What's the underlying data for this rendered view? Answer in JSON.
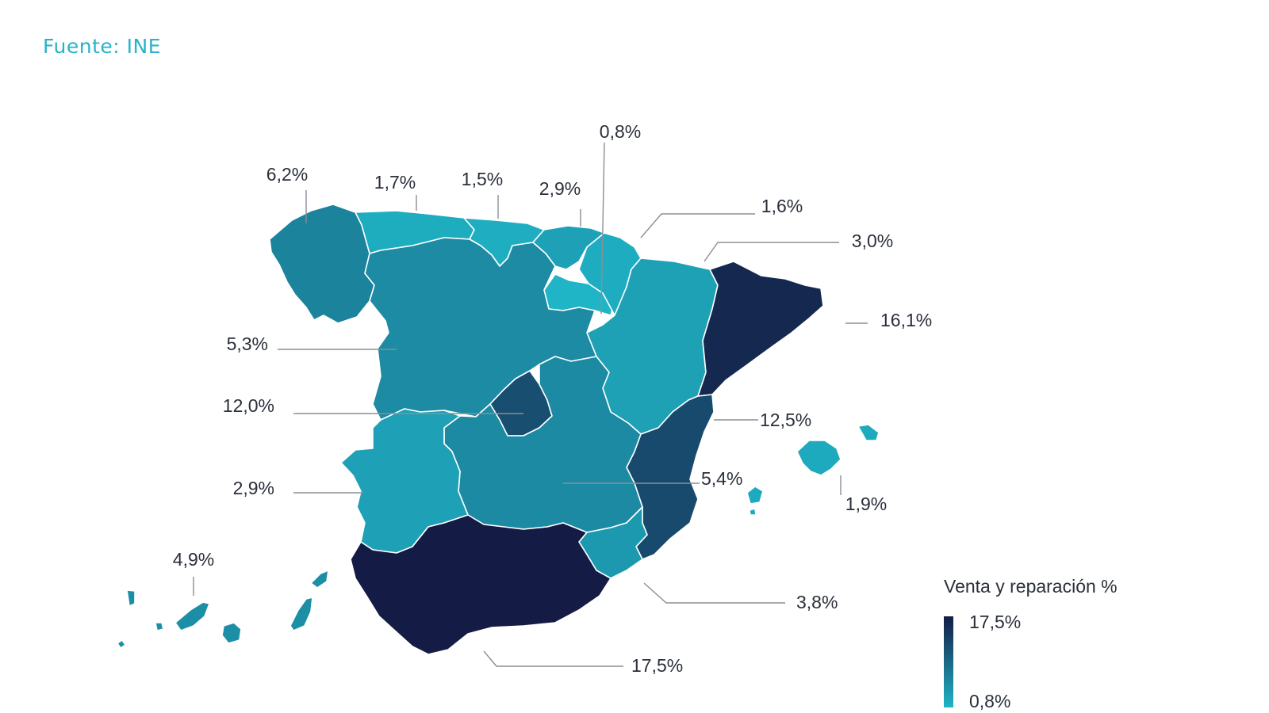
{
  "source": "Fuente: INE",
  "colors": {
    "source_text": "#29b3c8",
    "low": "#1fb4c6",
    "high": "#141c45"
  },
  "legend": {
    "title": "Venta y reparación %",
    "max_label": "17,5%",
    "min_label": "0,8%",
    "min_value": 0.8,
    "max_value": 17.5
  },
  "regions": [
    {
      "id": "galicia",
      "name": "Galicia",
      "value": 6.2,
      "label": "6,2%"
    },
    {
      "id": "asturias",
      "name": "Asturias",
      "value": 1.7,
      "label": "1,7%"
    },
    {
      "id": "cantabria",
      "name": "Cantabria",
      "value": 1.5,
      "label": "1,5%"
    },
    {
      "id": "pais-vasco",
      "name": "País Vasco",
      "value": 2.9,
      "label": "2,9%"
    },
    {
      "id": "la-rioja",
      "name": "La Rioja",
      "value": 0.8,
      "label": "0,8%"
    },
    {
      "id": "navarra",
      "name": "Navarra",
      "value": 1.6,
      "label": "1,6%"
    },
    {
      "id": "aragon",
      "name": "Aragón",
      "value": 3.0,
      "label": "3,0%"
    },
    {
      "id": "cataluna",
      "name": "Cataluña",
      "value": 16.1,
      "label": "16,1%"
    },
    {
      "id": "castilla-leon",
      "name": "Castilla y León",
      "value": 5.3,
      "label": "5,3%"
    },
    {
      "id": "madrid",
      "name": "Madrid",
      "value": 12.0,
      "label": "12,0%"
    },
    {
      "id": "valencia",
      "name": "Comunidad Valenciana",
      "value": 12.5,
      "label": "12,5%"
    },
    {
      "id": "castilla-la-mancha",
      "name": "Castilla-La Mancha",
      "value": 5.4,
      "label": "5,4%"
    },
    {
      "id": "baleares",
      "name": "Baleares",
      "value": 1.9,
      "label": "1,9%"
    },
    {
      "id": "extremadura",
      "name": "Extremadura",
      "value": 2.9,
      "label": "2,9%"
    },
    {
      "id": "canarias",
      "name": "Canarias",
      "value": 4.9,
      "label": "4,9%"
    },
    {
      "id": "murcia",
      "name": "Murcia",
      "value": 3.8,
      "label": "3,8%"
    },
    {
      "id": "andalucia",
      "name": "Andalucía",
      "value": 17.5,
      "label": "17,5%"
    }
  ]
}
